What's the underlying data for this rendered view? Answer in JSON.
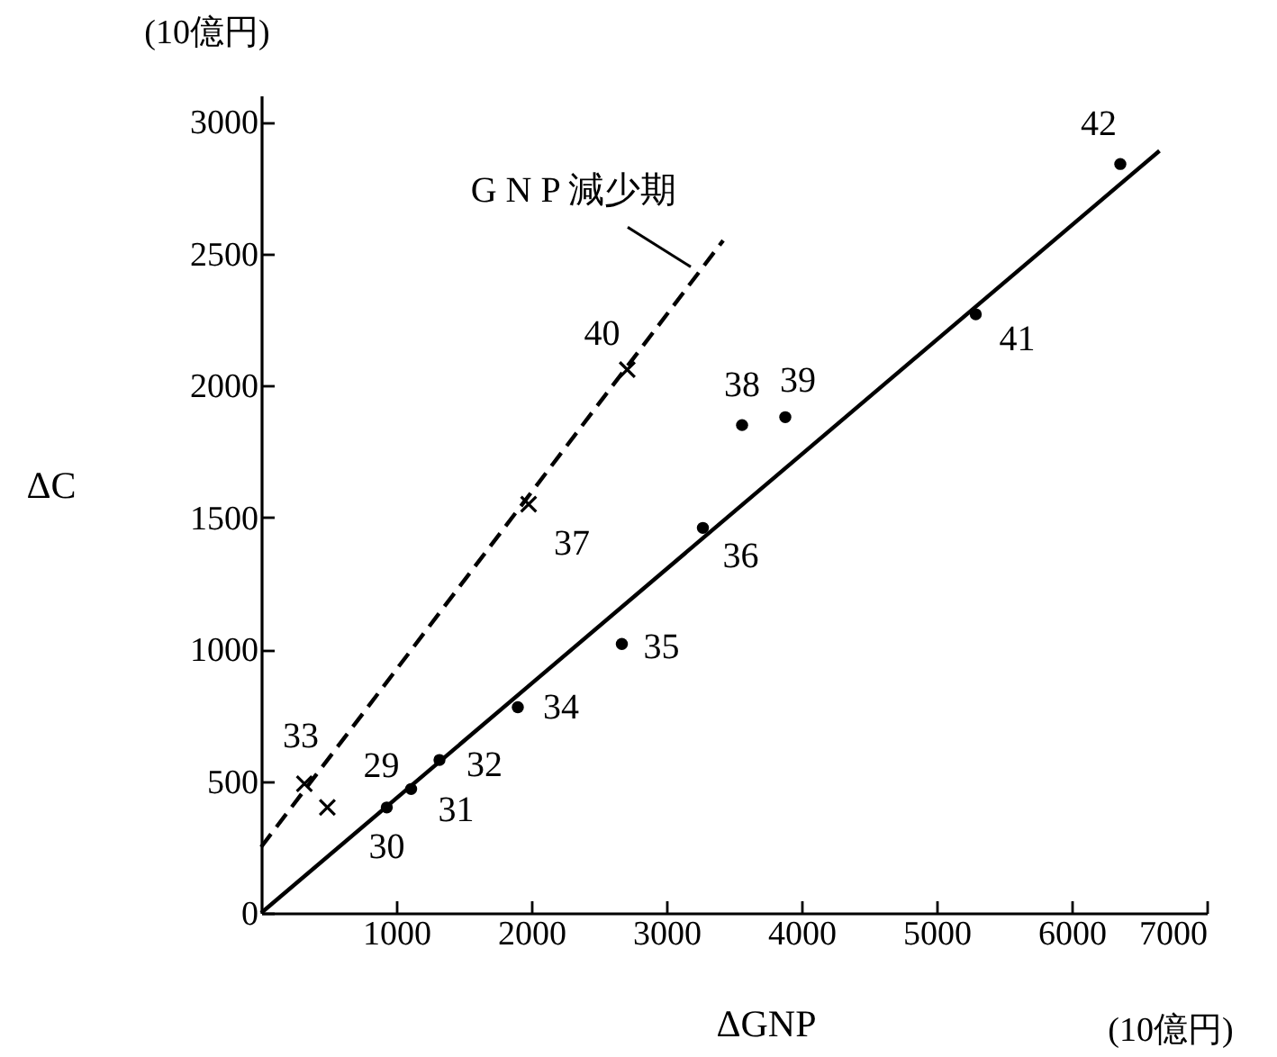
{
  "chart_data": {
    "type": "scatter",
    "xlabel": "ΔGNP",
    "ylabel": "ΔC",
    "xlim": [
      0,
      7000
    ],
    "xticks": [
      1000,
      2000,
      3000,
      4000,
      5000,
      6000,
      7000
    ],
    "ylim": [
      0,
      3100
    ],
    "yticks": [
      0,
      500,
      1000,
      1500,
      2000,
      2500,
      3000
    ],
    "series": [
      {
        "marker": "circle",
        "color": "#000000",
        "x": [
          930,
          1110,
          1320,
          1900,
          2670,
          3270,
          3560,
          3880,
          5290,
          6360
        ],
        "values": [
          400,
          470,
          580,
          780,
          1020,
          1460,
          1850,
          1880,
          2270,
          2840
        ]
      },
      {
        "marker": "cross",
        "color": "#000000",
        "x": [
          320,
          490,
          1980,
          2710
        ],
        "values": [
          490,
          400,
          1550,
          2060
        ]
      },
      {
        "type": "line",
        "line_style": "solid",
        "color": "#000000",
        "x": [
          0,
          6650
        ],
        "values": [
          0,
          2890
        ]
      },
      {
        "type": "line",
        "line_style": "dashed",
        "color": "#000000",
        "x": [
          0,
          3420
        ],
        "values": [
          250,
          2550
        ]
      }
    ],
    "annotations": [
      "(10億円)",
      "(10億円)",
      {
        "text": "30",
        "x": 930,
        "y": 400
      },
      {
        "text": "31",
        "x": 1110,
        "y": 470
      },
      {
        "text": "32",
        "x": 1320,
        "y": 580
      },
      {
        "text": "34",
        "x": 1900,
        "y": 780
      },
      {
        "text": "35",
        "x": 2670,
        "y": 1020
      },
      {
        "text": "36",
        "x": 3270,
        "y": 1460
      },
      {
        "text": "38",
        "x": 3560,
        "y": 1850
      },
      {
        "text": "39",
        "x": 3880,
        "y": 1880
      },
      {
        "text": "41",
        "x": 5290,
        "y": 2270
      },
      {
        "text": "42",
        "x": 6360,
        "y": 2840
      },
      {
        "text": "33",
        "x": 320,
        "y": 490
      },
      {
        "text": "29",
        "x": 490,
        "y": 400
      },
      {
        "text": "37",
        "x": 1980,
        "y": 1550
      },
      {
        "text": "40",
        "x": 2710,
        "y": 2060
      },
      {
        "text": "G N P 減少期",
        "x": 3180,
        "y": 2450
      }
    ]
  }
}
